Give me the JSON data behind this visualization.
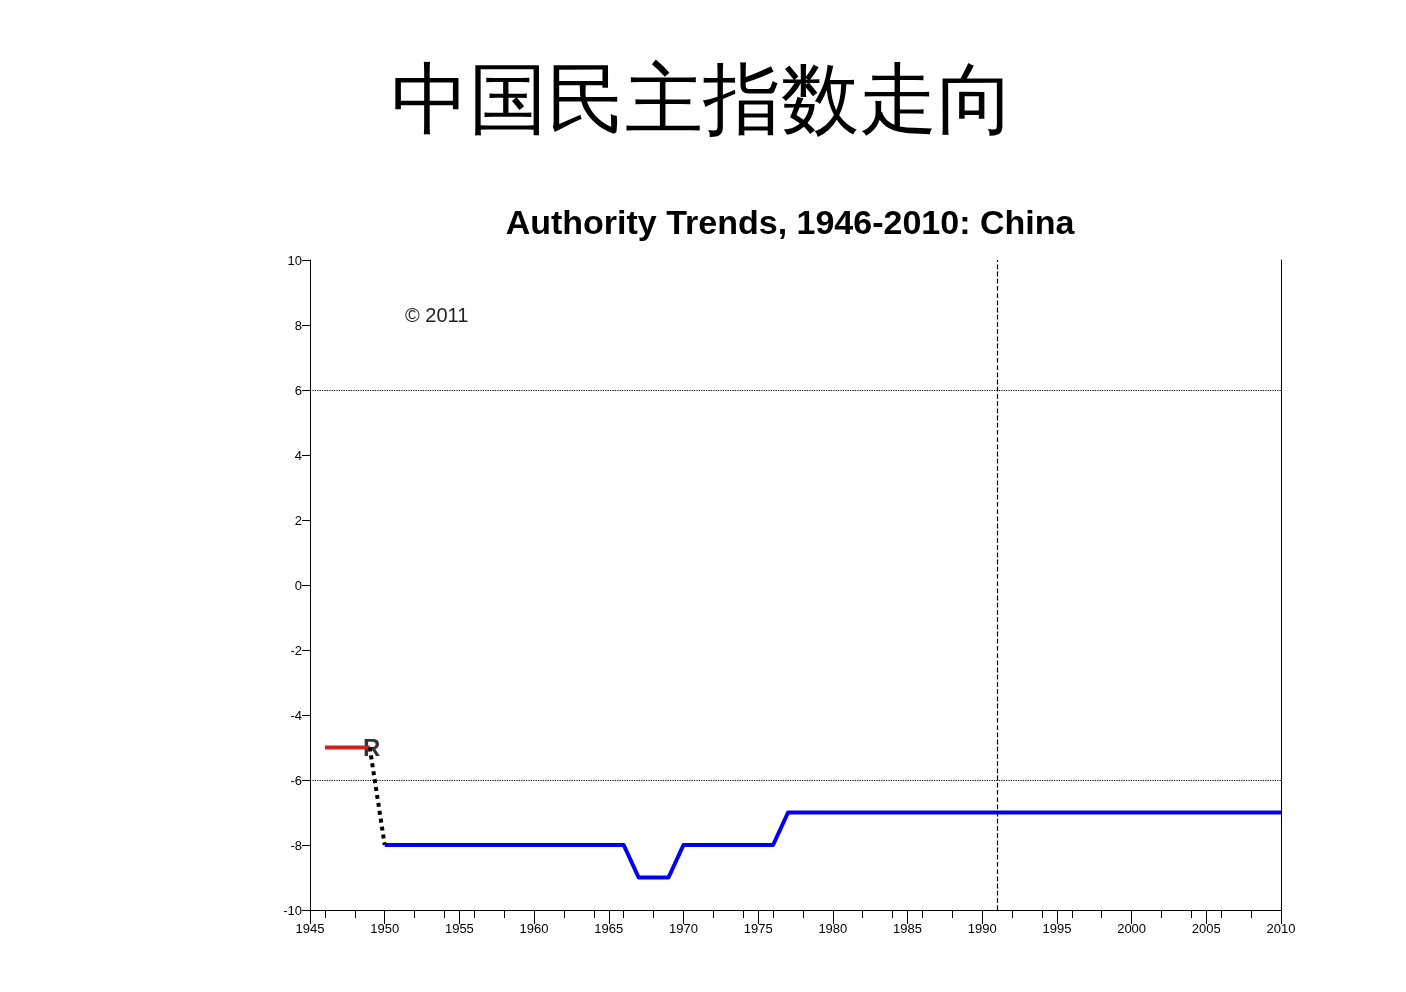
{
  "chart_data": {
    "type": "line",
    "title": "中国民主指数走向",
    "subtitle": "Authority Trends, 1946-2010: China",
    "xlim": [
      1945,
      2010
    ],
    "xticks": [
      1945,
      1950,
      1955,
      1960,
      1965,
      1970,
      1975,
      1980,
      1985,
      1990,
      1995,
      2000,
      2005,
      2010
    ],
    "ylim": [
      -10,
      10
    ],
    "yticks": [
      -10,
      -8,
      -6,
      -4,
      -2,
      0,
      2,
      4,
      6,
      8,
      10
    ],
    "grid": false,
    "marker": "none",
    "series": [
      {
        "color": "#cc2222",
        "line_style": "solid",
        "x": [
          1946,
          1949
        ],
        "values": [
          -5,
          -5
        ]
      },
      {
        "color": "#000000",
        "line_style": "dotted",
        "x": [
          1949,
          1950
        ],
        "values": [
          -5,
          -8
        ]
      },
      {
        "color": "#0000ee",
        "line_style": "solid",
        "x": [
          1950,
          1966,
          1967,
          1969,
          1970,
          1976,
          1977,
          2010
        ],
        "values": [
          -8,
          -8,
          -9,
          -9,
          -8,
          -8,
          -7,
          -7
        ]
      }
    ],
    "ref_lines": [
      {
        "axis": "y",
        "value": 6,
        "color": "#000000",
        "line_style": "dotted"
      },
      {
        "axis": "y",
        "value": -6,
        "color": "#000000",
        "line_style": "dotted"
      },
      {
        "axis": "x",
        "value": 1991,
        "color": "#000000",
        "line_style": "dashed"
      }
    ],
    "annotations": [
      {
        "text": "R",
        "x": 1949,
        "y": -5
      },
      "© 2011"
    ]
  }
}
